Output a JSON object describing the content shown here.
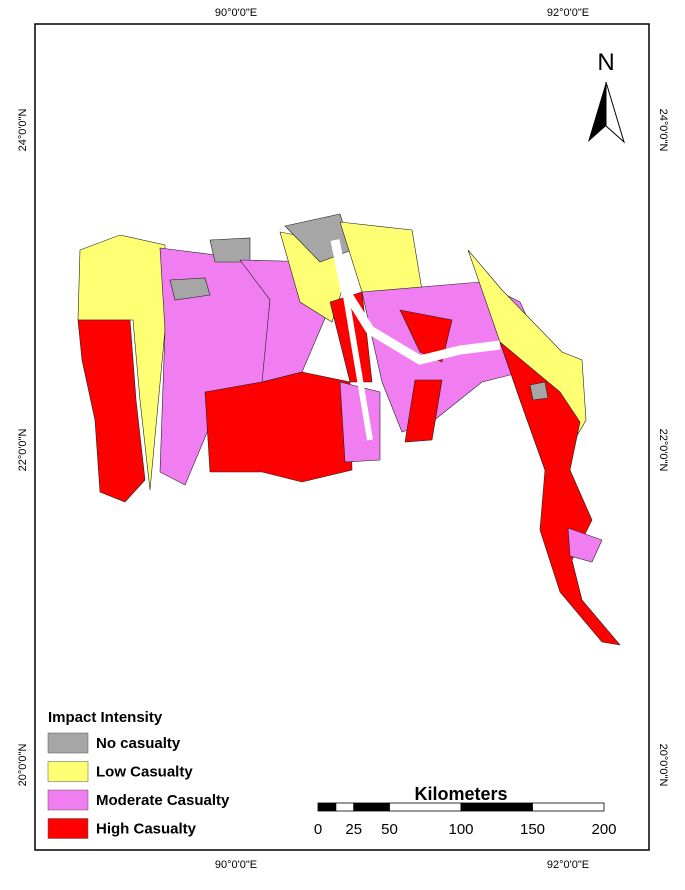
{
  "map": {
    "graticule": {
      "top": [
        "90°0'0\"E",
        "92°0'0\"E"
      ],
      "bottom": [
        "90°0'0\"E",
        "92°0'0\"E"
      ],
      "left": [
        "24°0'0\"N",
        "22°0'0\"N",
        "20°0'0\"N"
      ],
      "right": [
        "24°0'0\"N",
        "22°0'0\"N",
        "20°0'0\"N"
      ]
    },
    "north_label": "N",
    "legend": {
      "title": "Impact Intensity",
      "items": [
        {
          "label": "No casualty",
          "color": "#a6a6a6"
        },
        {
          "label": "Low Casualty",
          "color": "#ffff73"
        },
        {
          "label": "Moderate Casualty",
          "color": "#f07ef0"
        },
        {
          "label": "High Casualty",
          "color": "#ff0000"
        }
      ]
    },
    "scale_bar": {
      "title": "Kilometers",
      "ticks": [
        0,
        25,
        50,
        100,
        150,
        200
      ]
    }
  }
}
